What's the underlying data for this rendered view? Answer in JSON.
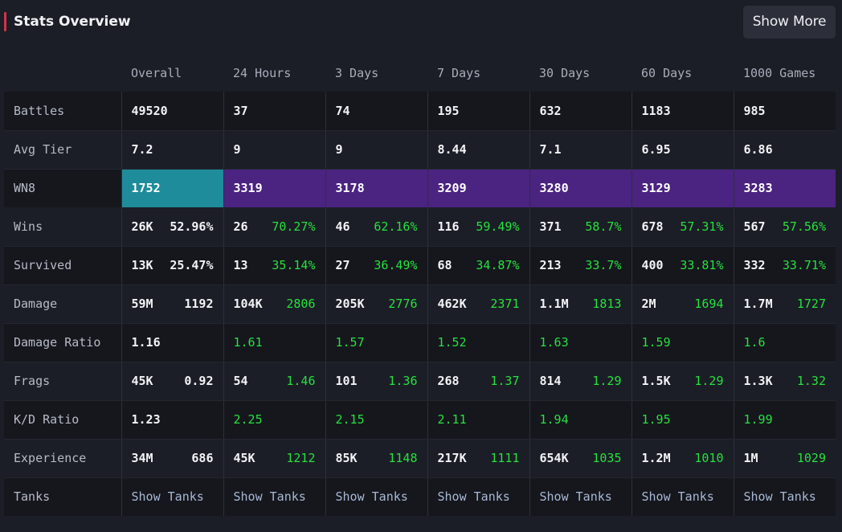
{
  "header": {
    "title": "Stats Overview",
    "show_more_label": "Show More"
  },
  "colors": {
    "accent": "#d2334a",
    "wn8_teal": "#1f8c9b",
    "wn8_purple": "#4b2381",
    "green": "#27e03f",
    "link": "#a9b8d4"
  },
  "columns": [
    "Overall",
    "24 Hours",
    "3 Days",
    "7 Days",
    "30 Days",
    "60 Days",
    "1000 Games"
  ],
  "rows": {
    "battles": {
      "label": "Battles",
      "values": [
        "49520",
        "37",
        "74",
        "195",
        "632",
        "1183",
        "985"
      ]
    },
    "avg_tier": {
      "label": "Avg Tier",
      "values": [
        "7.2",
        "9",
        "9",
        "8.44",
        "7.1",
        "6.95",
        "6.86"
      ]
    },
    "wn8": {
      "label": "WN8",
      "values": [
        "1752",
        "3319",
        "3178",
        "3209",
        "3280",
        "3129",
        "3283"
      ]
    },
    "wins": {
      "label": "Wins",
      "values": [
        {
          "count": "26K",
          "pct": "52.96%"
        },
        {
          "count": "26",
          "pct": "70.27%"
        },
        {
          "count": "46",
          "pct": "62.16%"
        },
        {
          "count": "116",
          "pct": "59.49%"
        },
        {
          "count": "371",
          "pct": "58.7%"
        },
        {
          "count": "678",
          "pct": "57.31%"
        },
        {
          "count": "567",
          "pct": "57.56%"
        }
      ]
    },
    "survived": {
      "label": "Survived",
      "values": [
        {
          "count": "13K",
          "pct": "25.47%"
        },
        {
          "count": "13",
          "pct": "35.14%"
        },
        {
          "count": "27",
          "pct": "36.49%"
        },
        {
          "count": "68",
          "pct": "34.87%"
        },
        {
          "count": "213",
          "pct": "33.7%"
        },
        {
          "count": "400",
          "pct": "33.81%"
        },
        {
          "count": "332",
          "pct": "33.71%"
        }
      ]
    },
    "damage": {
      "label": "Damage",
      "values": [
        {
          "total": "59M",
          "avg": "1192"
        },
        {
          "total": "104K",
          "avg": "2806"
        },
        {
          "total": "205K",
          "avg": "2776"
        },
        {
          "total": "462K",
          "avg": "2371"
        },
        {
          "total": "1.1M",
          "avg": "1813"
        },
        {
          "total": "2M",
          "avg": "1694"
        },
        {
          "total": "1.7M",
          "avg": "1727"
        }
      ]
    },
    "damage_ratio": {
      "label": "Damage Ratio",
      "values": [
        "1.16",
        "1.61",
        "1.57",
        "1.52",
        "1.63",
        "1.59",
        "1.6"
      ]
    },
    "frags": {
      "label": "Frags",
      "values": [
        {
          "total": "45K",
          "avg": "0.92"
        },
        {
          "total": "54",
          "avg": "1.46"
        },
        {
          "total": "101",
          "avg": "1.36"
        },
        {
          "total": "268",
          "avg": "1.37"
        },
        {
          "total": "814",
          "avg": "1.29"
        },
        {
          "total": "1.5K",
          "avg": "1.29"
        },
        {
          "total": "1.3K",
          "avg": "1.32"
        }
      ]
    },
    "kd_ratio": {
      "label": "K/D Ratio",
      "values": [
        "1.23",
        "2.25",
        "2.15",
        "2.11",
        "1.94",
        "1.95",
        "1.99"
      ]
    },
    "experience": {
      "label": "Experience",
      "values": [
        {
          "total": "34M",
          "avg": "686"
        },
        {
          "total": "45K",
          "avg": "1212"
        },
        {
          "total": "85K",
          "avg": "1148"
        },
        {
          "total": "217K",
          "avg": "1111"
        },
        {
          "total": "654K",
          "avg": "1035"
        },
        {
          "total": "1.2M",
          "avg": "1010"
        },
        {
          "total": "1M",
          "avg": "1029"
        }
      ]
    },
    "tanks": {
      "label": "Tanks",
      "link_label": "Show Tanks"
    }
  }
}
